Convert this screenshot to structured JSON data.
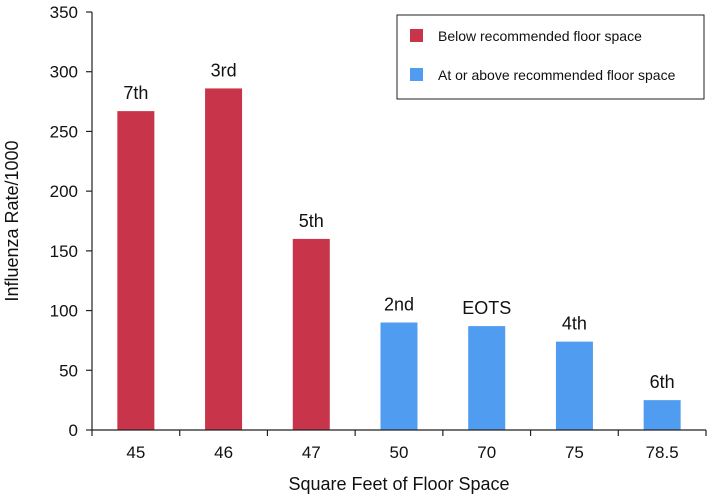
{
  "chart_data": {
    "type": "bar",
    "title": "",
    "xlabel": "Square Feet of Floor Space",
    "ylabel": "Influenza Rate/1000",
    "ylim": [
      0,
      350
    ],
    "yticks": [
      0,
      50,
      100,
      150,
      200,
      250,
      300,
      350
    ],
    "grid": false,
    "legend_position": "top-right",
    "categories": [
      "45",
      "46",
      "47",
      "50",
      "70",
      "75",
      "78.5"
    ],
    "values": [
      267,
      286,
      160,
      90,
      87,
      74,
      25
    ],
    "bar_labels": [
      "7th",
      "3rd",
      "5th",
      "2nd",
      "EOTS",
      "4th",
      "6th"
    ],
    "groups": [
      "below",
      "below",
      "below",
      "above",
      "above",
      "above",
      "above"
    ],
    "legend": [
      {
        "key": "below",
        "label": "Below recommended floor space",
        "color": "#c8344a"
      },
      {
        "key": "above",
        "label": "At or above recommended floor space",
        "color": "#4f9cf0"
      }
    ]
  }
}
